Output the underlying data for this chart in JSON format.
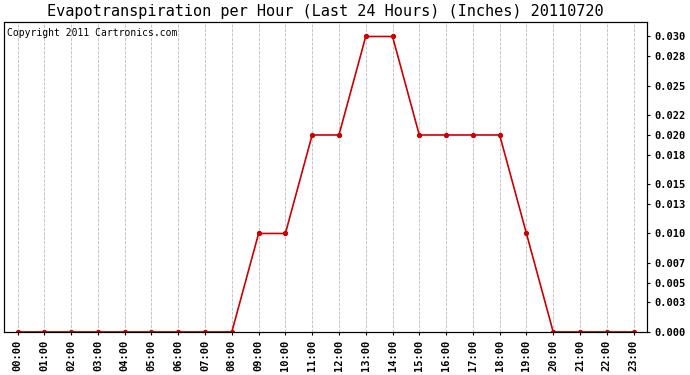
{
  "title": "Evapotranspiration per Hour (Last 24 Hours) (Inches) 20110720",
  "copyright_text": "Copyright 2011 Cartronics.com",
  "hours": [
    "00:00",
    "01:00",
    "02:00",
    "03:00",
    "04:00",
    "05:00",
    "06:00",
    "07:00",
    "08:00",
    "09:00",
    "10:00",
    "11:00",
    "12:00",
    "13:00",
    "14:00",
    "15:00",
    "16:00",
    "17:00",
    "18:00",
    "19:00",
    "20:00",
    "21:00",
    "22:00",
    "23:00"
  ],
  "values": [
    0.0,
    0.0,
    0.0,
    0.0,
    0.0,
    0.0,
    0.0,
    0.0,
    0.0,
    0.01,
    0.01,
    0.02,
    0.02,
    0.03,
    0.03,
    0.02,
    0.02,
    0.02,
    0.02,
    0.01,
    0.0,
    0.0,
    0.0,
    0.0
  ],
  "line_color": "#cc0000",
  "marker": "o",
  "marker_size": 3,
  "marker_color": "#cc0000",
  "background_color": "#ffffff",
  "plot_bg_color": "#ffffff",
  "grid_color": "#bbbbbb",
  "title_fontsize": 11,
  "copyright_fontsize": 7,
  "ylim": [
    0.0,
    0.0315
  ],
  "yticks": [
    0.0,
    0.003,
    0.005,
    0.007,
    0.01,
    0.013,
    0.015,
    0.018,
    0.02,
    0.022,
    0.025,
    0.028,
    0.03
  ],
  "tick_label_fontsize": 7.5,
  "axis_label_fontsize": 8
}
